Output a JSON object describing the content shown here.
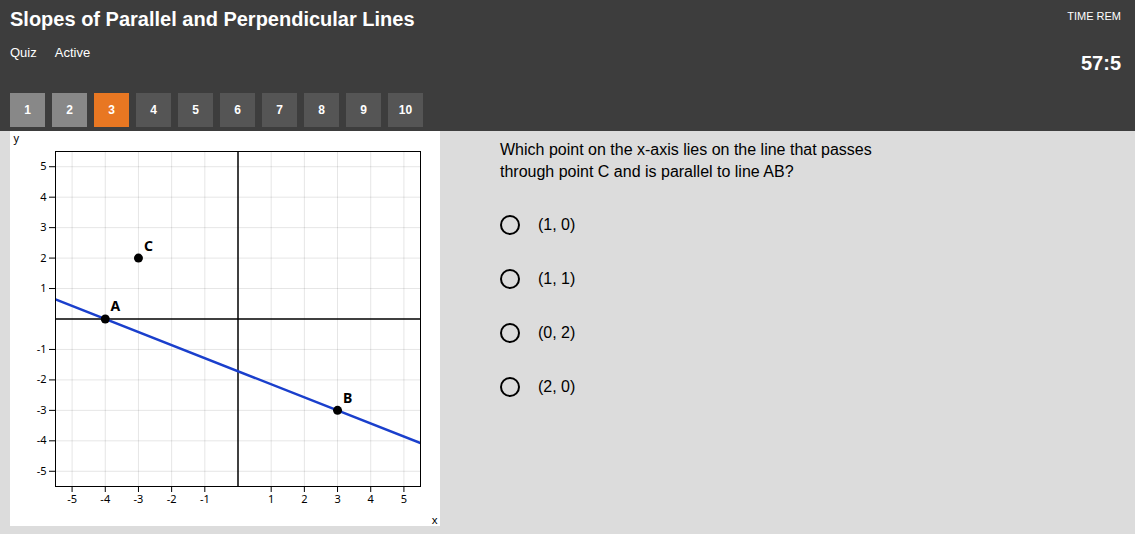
{
  "chart_data": {
    "type": "scatter",
    "title": "Slopes of Parallel and Perpendicular Lines",
    "annotations": [
      "Quiz",
      "Active",
      "TIME REM",
      "57:5",
      "Which point on the x-axis lies on the line that passes",
      "through point C and is parallel to line AB?"
    ],
    "options": [
      "(1, 0)",
      "(1, 1)",
      "(0, 2)",
      "(2, 0)"
    ],
    "buttons": [
      "1",
      "2",
      "3",
      "4",
      "5",
      "6",
      "7",
      "8",
      "9",
      "10"
    ],
    "active_button": "3",
    "xlabel": "x",
    "ylabel": "y",
    "xlim": [
      -5.5,
      5.5
    ],
    "ylim": [
      -5.5,
      5.5
    ],
    "xticks": [
      -5,
      -4,
      -3,
      -2,
      -1,
      1,
      2,
      3,
      4,
      5
    ],
    "yticks": [
      -5,
      -4,
      -3,
      -2,
      -1,
      1,
      2,
      3,
      4,
      5
    ],
    "grid": true,
    "series": [
      {
        "type": "line",
        "color": "#1a3fcc",
        "x": [
          -5.5,
          5.5
        ],
        "values": [
          0.6428571428571428,
          -4.071428571428571
        ]
      },
      {
        "type": "scatter",
        "color": "#000000",
        "x": [
          -4,
          3,
          -3
        ],
        "values": [
          0,
          -3,
          2
        ],
        "labels": [
          "A",
          "B",
          "C"
        ]
      }
    ]
  }
}
